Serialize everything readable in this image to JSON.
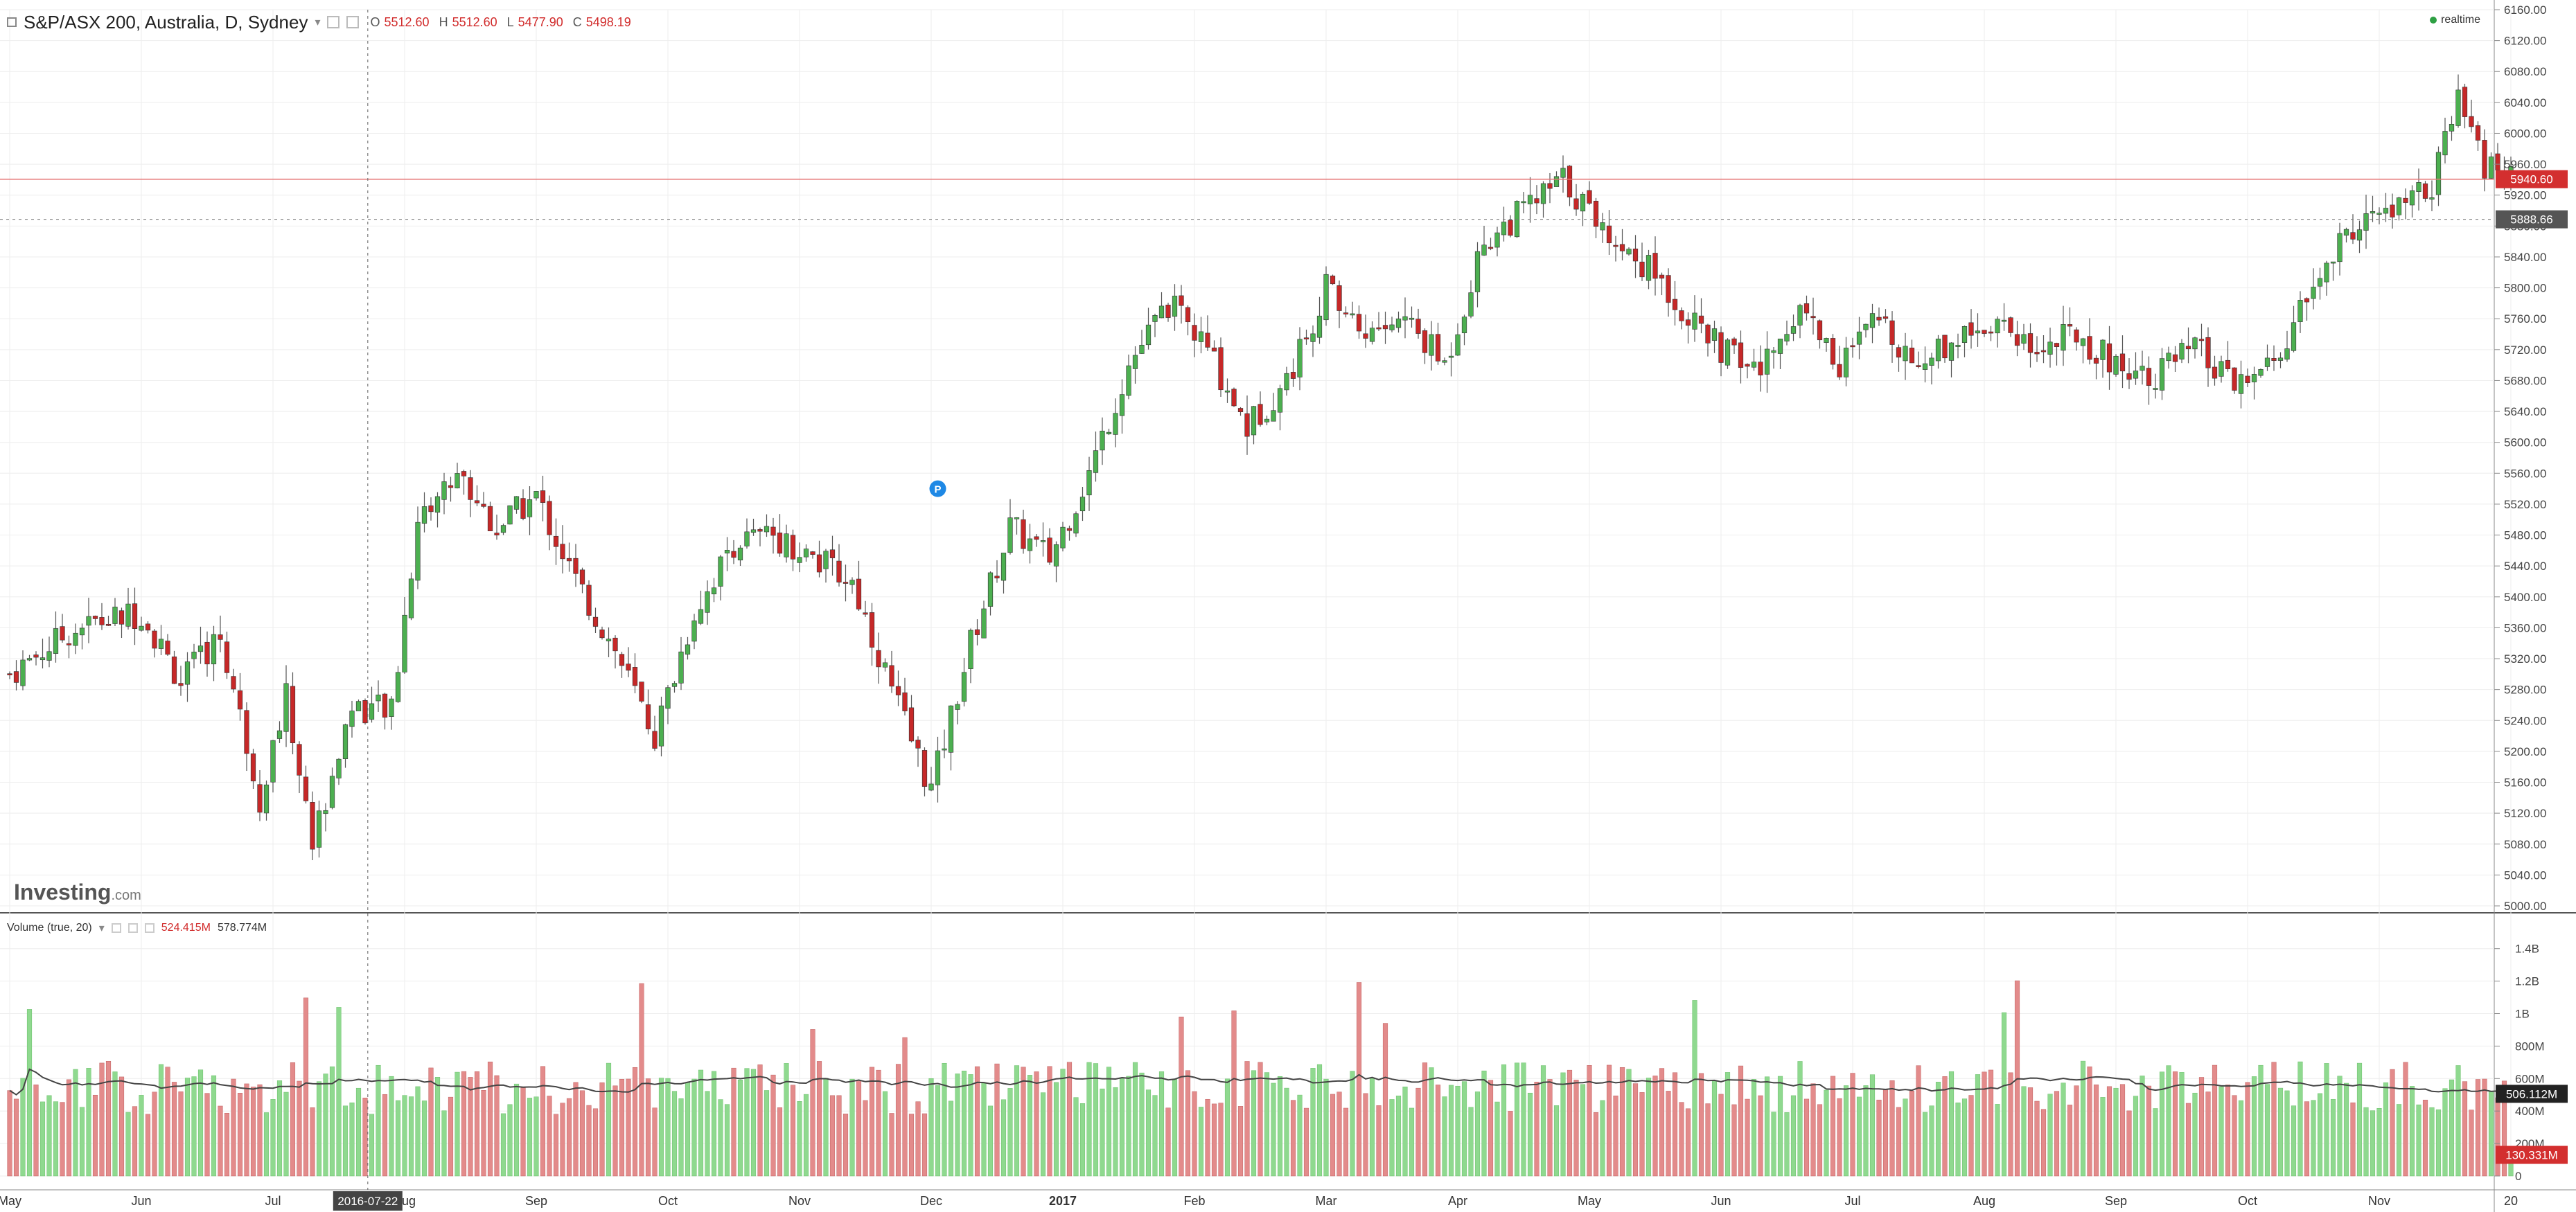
{
  "header": {
    "symbol": "S&P/ASX 200, Australia, D, Sydney",
    "open_label": "O",
    "open": "5512.60",
    "high_label": "H",
    "high": "5512.60",
    "low_label": "L",
    "low": "5477.90",
    "close_label": "C",
    "close": "5498.19"
  },
  "realtime_label": "realtime",
  "logo": {
    "main": "Investing",
    "suffix": ".com"
  },
  "volume_header": {
    "title": "Volume (true, 20)",
    "value1": "524.415M",
    "value2": "578.774M"
  },
  "crosshair_date": "2016-07-22",
  "price_markers": {
    "last": "5940.60",
    "crosshair": "5888.66"
  },
  "volume_markers": {
    "ma": "506.112M",
    "last": "130.331M"
  },
  "annotation_badge": "P",
  "colors": {
    "up": "#4caf50",
    "down": "#c62828",
    "vol_up": "#8fd98f",
    "vol_down": "#e38b8b",
    "grid": "#eeeeee",
    "text": "#333333"
  },
  "chart_data": {
    "type": "candlestick",
    "title": "S&P/ASX 200, Australia, D, Sydney",
    "x_labels": [
      "May",
      "Jun",
      "Jul",
      "Aug",
      "Sep",
      "Oct",
      "Nov",
      "Dec",
      "2017",
      "Feb",
      "Mar",
      "Apr",
      "May",
      "Jun",
      "Jul",
      "Aug",
      "Sep",
      "Oct",
      "Nov",
      "20"
    ],
    "y_ticks": [
      "6160.00",
      "6120.00",
      "6080.00",
      "6040.00",
      "6000.00",
      "5960.00",
      "5920.00",
      "5880.00",
      "5840.00",
      "5800.00",
      "5760.00",
      "5720.00",
      "5680.00",
      "5640.00",
      "5600.00",
      "5560.00",
      "5520.00",
      "5480.00",
      "5440.00",
      "5400.00",
      "5360.00",
      "5320.00",
      "5280.00",
      "5240.00",
      "5200.00",
      "5160.00",
      "5120.00",
      "5080.00",
      "5040.00",
      "5000.00"
    ],
    "ylim": [
      5000,
      6160
    ],
    "volume_ticks": [
      "1.4B",
      "1.2B",
      "1B",
      "800M",
      "600M",
      "400M",
      "200M",
      "0"
    ],
    "volume_ylim": [
      0,
      1450
    ],
    "close_series": [
      {
        "m": 0,
        "c": 5300
      },
      {
        "m": 0.5,
        "c": 5360
      },
      {
        "m": 1,
        "c": 5380
      },
      {
        "m": 1.3,
        "c": 5290
      },
      {
        "m": 1.6,
        "c": 5350
      },
      {
        "m": 1.9,
        "c": 5140
      },
      {
        "m": 2.1,
        "c": 5270
      },
      {
        "m": 2.3,
        "c": 5080
      },
      {
        "m": 2.6,
        "c": 5260
      },
      {
        "m": 2.9,
        "c": 5250
      },
      {
        "m": 3.1,
        "c": 5500
      },
      {
        "m": 3.4,
        "c": 5560
      },
      {
        "m": 3.7,
        "c": 5490
      },
      {
        "m": 4,
        "c": 5530
      },
      {
        "m": 4.3,
        "c": 5420
      },
      {
        "m": 4.6,
        "c": 5330
      },
      {
        "m": 4.9,
        "c": 5220
      },
      {
        "m": 5.2,
        "c": 5380
      },
      {
        "m": 5.5,
        "c": 5470
      },
      {
        "m": 5.8,
        "c": 5480
      },
      {
        "m": 6.1,
        "c": 5450
      },
      {
        "m": 6.4,
        "c": 5420
      },
      {
        "m": 6.7,
        "c": 5280
      },
      {
        "m": 7,
        "c": 5150
      },
      {
        "m": 7.3,
        "c": 5340
      },
      {
        "m": 7.6,
        "c": 5490
      },
      {
        "m": 7.9,
        "c": 5450
      },
      {
        "m": 8.2,
        "c": 5560
      },
      {
        "m": 8.5,
        "c": 5700
      },
      {
        "m": 8.8,
        "c": 5780
      },
      {
        "m": 9.1,
        "c": 5720
      },
      {
        "m": 9.4,
        "c": 5620
      },
      {
        "m": 9.7,
        "c": 5680
      },
      {
        "m": 10,
        "c": 5800
      },
      {
        "m": 10.3,
        "c": 5740
      },
      {
        "m": 10.6,
        "c": 5760
      },
      {
        "m": 10.9,
        "c": 5700
      },
      {
        "m": 11.2,
        "c": 5860
      },
      {
        "m": 11.5,
        "c": 5900
      },
      {
        "m": 11.8,
        "c": 5940
      },
      {
        "m": 12,
        "c": 5900
      },
      {
        "m": 12.2,
        "c": 5860
      },
      {
        "m": 12.5,
        "c": 5820
      },
      {
        "m": 12.8,
        "c": 5750
      },
      {
        "m": 13,
        "c": 5720
      },
      {
        "m": 13.3,
        "c": 5690
      },
      {
        "m": 13.6,
        "c": 5780
      },
      {
        "m": 13.9,
        "c": 5700
      },
      {
        "m": 14.2,
        "c": 5760
      },
      {
        "m": 14.5,
        "c": 5700
      },
      {
        "m": 14.8,
        "c": 5740
      },
      {
        "m": 15.1,
        "c": 5760
      },
      {
        "m": 15.4,
        "c": 5720
      },
      {
        "m": 15.7,
        "c": 5740
      },
      {
        "m": 16,
        "c": 5700
      },
      {
        "m": 16.3,
        "c": 5690
      },
      {
        "m": 16.6,
        "c": 5720
      },
      {
        "m": 16.9,
        "c": 5670
      },
      {
        "m": 17.2,
        "c": 5700
      },
      {
        "m": 17.5,
        "c": 5800
      },
      {
        "m": 17.8,
        "c": 5880
      },
      {
        "m": 18.1,
        "c": 5900
      },
      {
        "m": 18.4,
        "c": 5930
      },
      {
        "m": 18.6,
        "c": 6040
      },
      {
        "m": 18.8,
        "c": 5960
      },
      {
        "m": 19,
        "c": 5940
      }
    ]
  }
}
